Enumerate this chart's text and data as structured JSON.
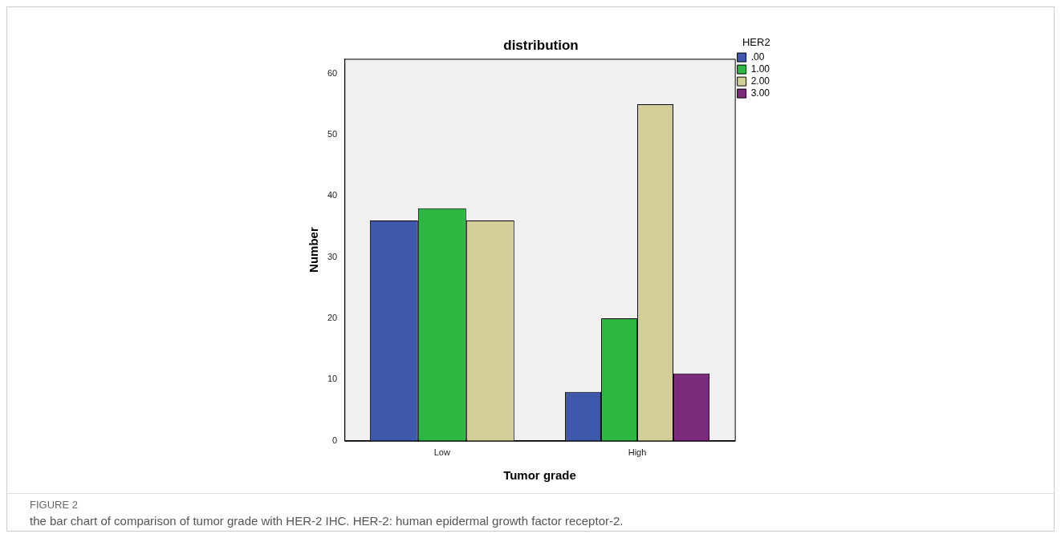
{
  "chart_data": {
    "type": "bar",
    "title": "distribution",
    "xlabel": "Tumor grade",
    "ylabel": "Number",
    "legend_title": "HER2",
    "categories": [
      "Low",
      "High"
    ],
    "series": [
      {
        "name": ".00",
        "color": "#3e58ac",
        "values": [
          36,
          8
        ]
      },
      {
        "name": "1.00",
        "color": "#2db844",
        "values": [
          38,
          20
        ]
      },
      {
        "name": "2.00",
        "color": "#d3ce97",
        "values": [
          36,
          55
        ]
      },
      {
        "name": "3.00",
        "color": "#7c2a7b",
        "values": [
          null,
          11
        ]
      }
    ],
    "ylim": [
      0,
      62.4
    ],
    "yticks": [
      0,
      10,
      20,
      30,
      40,
      50,
      60
    ],
    "grid": false,
    "legend": "top right",
    "annotations": [
      "FIGURE 2",
      "the bar chart of comparison of tumor grade with HER-2 IHC. HER-2: human epidermal growth factor receptor-2."
    ]
  }
}
